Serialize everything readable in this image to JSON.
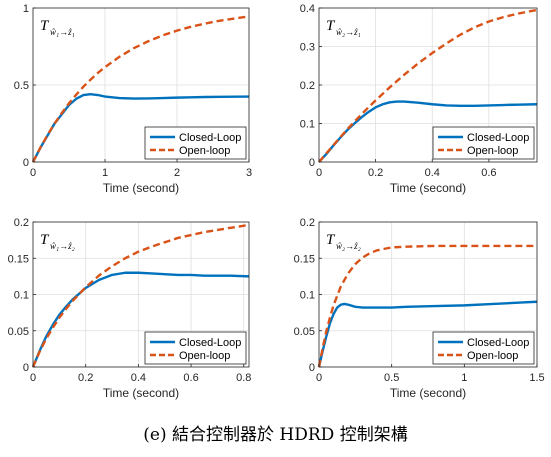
{
  "caption": "(e) 結合控制器於 HDRD 控制架構",
  "colors": {
    "closed": "#0072BD",
    "open": "#D95319"
  },
  "chart_data": [
    {
      "type": "line",
      "title_main": "T",
      "title_sub": "ŵ₁→ẑ₁",
      "xlabel": "Time (second)",
      "xlim": [
        0,
        3
      ],
      "ylim": [
        0,
        1
      ],
      "xticks": [
        0,
        1,
        2,
        3
      ],
      "xtick_labels": [
        "0",
        "1",
        "2",
        "3"
      ],
      "yticks": [
        0,
        0.5,
        1
      ],
      "ytick_labels": [
        "0",
        "0.5",
        "1"
      ],
      "grid": true,
      "legend": "bottom-right",
      "series": [
        {
          "name": "Closed-Loop",
          "style": "solid",
          "x": [
            0,
            0.1,
            0.2,
            0.3,
            0.4,
            0.5,
            0.6,
            0.7,
            0.8,
            0.9,
            1.0,
            1.2,
            1.4,
            1.6,
            1.8,
            2.0,
            2.2,
            2.4,
            2.6,
            2.8,
            3.0
          ],
          "y": [
            0,
            0.09,
            0.17,
            0.25,
            0.31,
            0.37,
            0.41,
            0.435,
            0.44,
            0.435,
            0.425,
            0.415,
            0.412,
            0.413,
            0.415,
            0.418,
            0.42,
            0.422,
            0.423,
            0.424,
            0.425
          ]
        },
        {
          "name": "Open-loop",
          "style": "dashed",
          "x": [
            0,
            0.1,
            0.2,
            0.3,
            0.4,
            0.5,
            0.6,
            0.7,
            0.8,
            0.9,
            1.0,
            1.2,
            1.4,
            1.6,
            1.8,
            2.0,
            2.2,
            2.4,
            2.6,
            2.8,
            3.0
          ],
          "y": [
            0,
            0.091,
            0.174,
            0.25,
            0.318,
            0.381,
            0.437,
            0.489,
            0.535,
            0.578,
            0.616,
            0.683,
            0.739,
            0.784,
            0.822,
            0.853,
            0.879,
            0.9,
            0.918,
            0.932,
            0.945
          ]
        }
      ]
    },
    {
      "type": "line",
      "title_main": "T",
      "title_sub": "ŵ₂→ẑ₁",
      "xlabel": "Time (second)",
      "xlim": [
        0,
        0.77
      ],
      "ylim": [
        0,
        0.4
      ],
      "xticks": [
        0,
        0.2,
        0.4,
        0.6
      ],
      "xtick_labels": [
        "0",
        "0.2",
        "0.4",
        "0.6"
      ],
      "yticks": [
        0,
        0.1,
        0.2,
        0.3,
        0.4
      ],
      "ytick_labels": [
        "0",
        "0.1",
        "0.2",
        "0.3",
        "0.4"
      ],
      "grid": true,
      "legend": "bottom-right",
      "series": [
        {
          "name": "Closed-Loop",
          "style": "solid",
          "x": [
            0,
            0.025,
            0.05,
            0.075,
            0.1,
            0.125,
            0.15,
            0.175,
            0.2,
            0.225,
            0.25,
            0.275,
            0.3,
            0.35,
            0.4,
            0.45,
            0.5,
            0.55,
            0.6,
            0.65,
            0.7,
            0.77
          ],
          "y": [
            0,
            0.02,
            0.042,
            0.063,
            0.083,
            0.1,
            0.116,
            0.13,
            0.142,
            0.15,
            0.155,
            0.157,
            0.157,
            0.154,
            0.15,
            0.147,
            0.146,
            0.146,
            0.147,
            0.148,
            0.149,
            0.15
          ]
        },
        {
          "name": "Open-loop",
          "style": "dashed",
          "x": [
            0,
            0.05,
            0.1,
            0.15,
            0.2,
            0.25,
            0.3,
            0.35,
            0.4,
            0.45,
            0.5,
            0.55,
            0.6,
            0.65,
            0.7,
            0.77
          ],
          "y": [
            0,
            0.043,
            0.085,
            0.124,
            0.16,
            0.194,
            0.226,
            0.256,
            0.283,
            0.308,
            0.331,
            0.35,
            0.365,
            0.376,
            0.385,
            0.395
          ]
        }
      ]
    },
    {
      "type": "line",
      "title_main": "T",
      "title_sub": "ŵ₁→ẑ₂",
      "xlabel": "Time (second)",
      "xlim": [
        0,
        0.82
      ],
      "ylim": [
        0,
        0.2
      ],
      "xticks": [
        0,
        0.2,
        0.4,
        0.6,
        0.8
      ],
      "xtick_labels": [
        "0",
        "0.2",
        "0.4",
        "0.6",
        "0.8"
      ],
      "yticks": [
        0,
        0.05,
        0.1,
        0.15,
        0.2
      ],
      "ytick_labels": [
        "0",
        "0.05",
        "0.1",
        "0.15",
        "0.2"
      ],
      "grid": true,
      "legend": "bottom-right",
      "series": [
        {
          "name": "Closed-Loop",
          "style": "solid",
          "x": [
            0,
            0.025,
            0.05,
            0.075,
            0.1,
            0.125,
            0.15,
            0.2,
            0.25,
            0.3,
            0.35,
            0.4,
            0.45,
            0.5,
            0.55,
            0.6,
            0.65,
            0.7,
            0.75,
            0.82
          ],
          "y": [
            0,
            0.022,
            0.042,
            0.058,
            0.072,
            0.083,
            0.093,
            0.109,
            0.12,
            0.127,
            0.13,
            0.13,
            0.129,
            0.128,
            0.127,
            0.127,
            0.126,
            0.126,
            0.126,
            0.125
          ]
        },
        {
          "name": "Open-loop",
          "style": "dashed",
          "x": [
            0,
            0.025,
            0.05,
            0.075,
            0.1,
            0.125,
            0.15,
            0.2,
            0.25,
            0.3,
            0.35,
            0.4,
            0.45,
            0.5,
            0.55,
            0.6,
            0.65,
            0.7,
            0.75,
            0.82
          ],
          "y": [
            0,
            0.021,
            0.039,
            0.054,
            0.068,
            0.08,
            0.091,
            0.11,
            0.126,
            0.139,
            0.15,
            0.159,
            0.166,
            0.172,
            0.178,
            0.182,
            0.186,
            0.189,
            0.192,
            0.196
          ]
        }
      ]
    },
    {
      "type": "line",
      "title_main": "T",
      "title_sub": "ŵ₂→ẑ₂",
      "xlabel": "Time (second)",
      "xlim": [
        0,
        1.5
      ],
      "ylim": [
        0,
        0.2
      ],
      "xticks": [
        0,
        0.5,
        1,
        1.5
      ],
      "xtick_labels": [
        "0",
        "0.5",
        "1",
        "1.5"
      ],
      "yticks": [
        0,
        0.05,
        0.1,
        0.15,
        0.2
      ],
      "ytick_labels": [
        "0",
        "0.05",
        "0.1",
        "0.15",
        "0.2"
      ],
      "grid": true,
      "legend": "bottom-right",
      "series": [
        {
          "name": "Closed-Loop",
          "style": "solid",
          "x": [
            0,
            0.025,
            0.05,
            0.075,
            0.1,
            0.125,
            0.15,
            0.175,
            0.2,
            0.25,
            0.3,
            0.4,
            0.5,
            0.6,
            0.8,
            1.0,
            1.2,
            1.4,
            1.5
          ],
          "y": [
            0,
            0.022,
            0.042,
            0.06,
            0.073,
            0.082,
            0.086,
            0.087,
            0.086,
            0.083,
            0.082,
            0.082,
            0.082,
            0.083,
            0.084,
            0.085,
            0.087,
            0.089,
            0.09
          ]
        },
        {
          "name": "Open-loop",
          "style": "dashed",
          "x": [
            0,
            0.025,
            0.05,
            0.075,
            0.1,
            0.15,
            0.2,
            0.25,
            0.3,
            0.35,
            0.4,
            0.5,
            0.6,
            0.8,
            1.0,
            1.2,
            1.5
          ],
          "y": [
            0,
            0.026,
            0.049,
            0.068,
            0.085,
            0.111,
            0.129,
            0.142,
            0.151,
            0.157,
            0.161,
            0.165,
            0.166,
            0.167,
            0.167,
            0.167,
            0.167
          ]
        }
      ]
    }
  ]
}
